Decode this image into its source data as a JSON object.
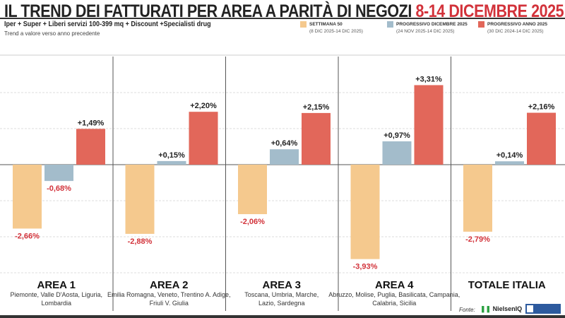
{
  "header": {
    "title_main": "IL TREND DEI FATTURATI PER AREA A PARITÀ DI NEGOZI",
    "title_date": "8-14 DICEMBRE 2025",
    "subtitle": "Iper + Super + Liberi servizi 100-399 mq + Discount +Specialisti drug",
    "note": "Trend a valore verso anno precedente"
  },
  "legend": [
    {
      "label": "SETTIMANA 50",
      "dates": "(8 DIC 2025-14 DIC 2025)",
      "color": "#f5c98e"
    },
    {
      "label": "PROGRESSIVO DICEMBRE 2025",
      "dates": "(24 NOV 2025-14 DIC 2025)",
      "color": "#a3bccb"
    },
    {
      "label": "PROGRESSIVO ANNO 2025",
      "dates": "(30 DIC 2024-14 DIC 2025)",
      "color": "#e2675a"
    }
  ],
  "chart_data": {
    "type": "bar",
    "categories": [
      "AREA 1",
      "AREA 2",
      "AREA 3",
      "AREA 4",
      "TOTALE ITALIA"
    ],
    "category_details": [
      "Piemonte, Valle D'Aosta, Liguria, Lombardia",
      "Emilia Romagna, Veneto, Trentino A. Adige, Friuli V. Giulia",
      "Toscana, Umbria, Marche, Lazio, Sardegna",
      "Abruzzo, Molise, Puglia, Basilicata, Campania, Calabria, Sicilia",
      ""
    ],
    "series": [
      {
        "name": "SETTIMANA 50",
        "values": [
          -2.66,
          -2.88,
          -2.06,
          -3.93,
          -2.79
        ],
        "labels": [
          "-2,66%",
          "-2,88%",
          "-2,06%",
          "-3,93%",
          "-2,79%"
        ]
      },
      {
        "name": "PROGRESSIVO DICEMBRE 2025",
        "values": [
          -0.68,
          0.15,
          0.64,
          0.97,
          0.14
        ],
        "labels": [
          "-0,68%",
          "+0,15%",
          "+0,64%",
          "+0,97%",
          "+0,14%"
        ]
      },
      {
        "name": "PROGRESSIVO ANNO 2025",
        "values": [
          1.49,
          2.2,
          2.15,
          3.31,
          2.16
        ],
        "labels": [
          "+1,49%",
          "+2,20%",
          "+2,15%",
          "+3,31%",
          "+2,16%"
        ]
      }
    ],
    "ylim": [
      -4.5,
      4.5
    ],
    "grid": true,
    "legend_position": "top-right"
  },
  "footer": {
    "source_label": "Fonte:",
    "source_brand": "NielsenIQ"
  }
}
